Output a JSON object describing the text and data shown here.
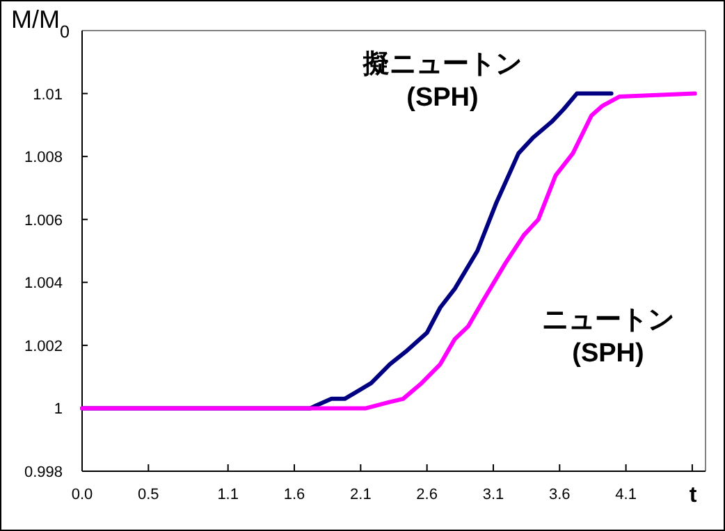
{
  "chart_data": {
    "type": "line",
    "ylabel": "M/M$_{0}$",
    "xlabel": "t",
    "xlim": [
      0,
      4.7
    ],
    "ylim": [
      0.998,
      1.012
    ],
    "xticks": [
      {
        "value": 0,
        "label": "0.0"
      },
      {
        "value": 0.5,
        "label": "0.5"
      },
      {
        "value": 1.1,
        "label": "1.1"
      },
      {
        "value": 1.6,
        "label": "1.6"
      },
      {
        "value": 2.1,
        "label": "2.1"
      },
      {
        "value": 2.6,
        "label": "2.6"
      },
      {
        "value": 3.1,
        "label": "3.1"
      },
      {
        "value": 3.6,
        "label": "3.6"
      },
      {
        "value": 4.1,
        "label": "4.1"
      },
      {
        "value": 4.6,
        "label": null
      }
    ],
    "yticks": [
      0.998,
      1,
      1.002,
      1.004,
      1.006,
      1.008,
      1.01
    ],
    "grid": false,
    "line_style": "solid",
    "marker": "none",
    "series": [
      {
        "name": "擬ニュートン\n(SPH)",
        "color": "#000080",
        "x": [
          0,
          1.72,
          1.77,
          1.88,
          1.98,
          2.18,
          2.32,
          2.44,
          2.6,
          2.7,
          2.81,
          2.98,
          3.12,
          3.29,
          3.4,
          3.54,
          3.63,
          3.73,
          3.99
        ],
        "values": [
          1,
          1,
          1.0001,
          1.0003,
          1.0003,
          1.0008,
          1.0014,
          1.0018,
          1.0024,
          1.0032,
          1.0038,
          1.005,
          1.0065,
          1.0081,
          1.0086,
          1.0091,
          1.0095,
          1.01,
          1.01
        ]
      },
      {
        "name": "ニュートン\n(SPH)",
        "color": "#ff00ff",
        "x": [
          0,
          2.14,
          2.32,
          2.42,
          2.56,
          2.7,
          2.81,
          2.91,
          3.02,
          3.19,
          3.33,
          3.44,
          3.57,
          3.7,
          3.84,
          3.92,
          4.05,
          4.62
        ],
        "values": [
          1,
          1,
          1.0002,
          1.0003,
          1.0008,
          1.0014,
          1.0022,
          1.0026,
          1.0034,
          1.0046,
          1.0055,
          1.006,
          1.0074,
          1.0081,
          1.0093,
          1.0096,
          1.0099,
          1.01
        ]
      }
    ]
  }
}
